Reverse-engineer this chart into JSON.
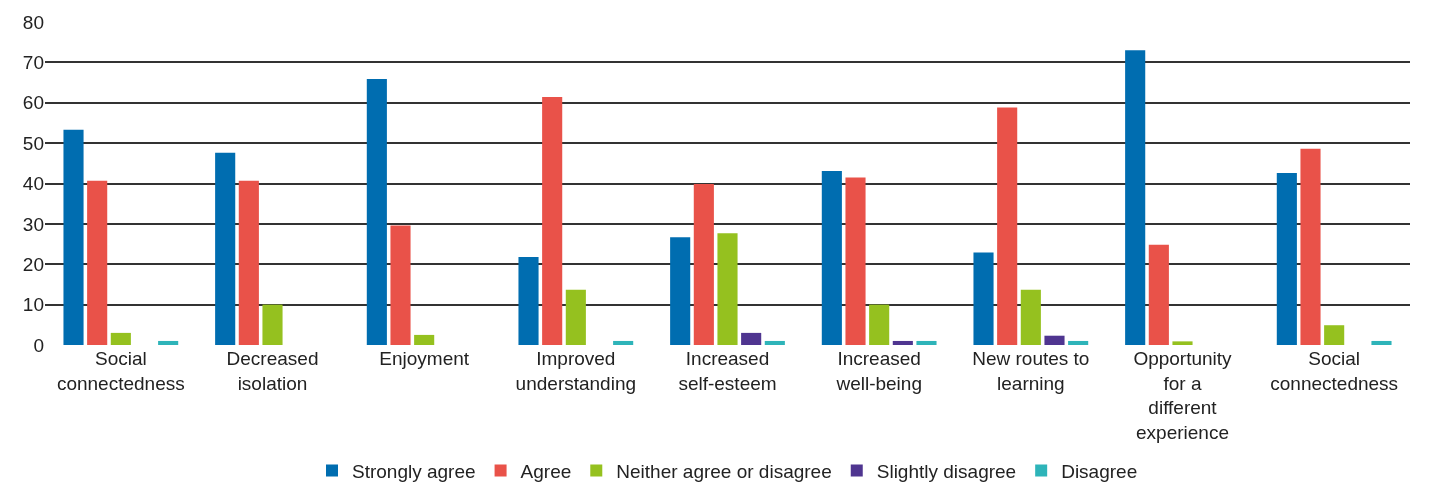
{
  "chart_data": {
    "type": "bar",
    "categories": [
      "Social connectedness",
      "Decreased isolation",
      "Enjoyment",
      "Improved understanding",
      "Increased self-esteem",
      "Increased well-being",
      "New routes to learning",
      "Opportunity for a different experience",
      "Social connectedness"
    ],
    "series": [
      {
        "name": "Strongly agree",
        "color": "#006db0",
        "values": [
          53.3,
          47.6,
          65.9,
          21.8,
          26.7,
          43.1,
          22.9,
          73.0,
          42.6
        ]
      },
      {
        "name": "Agree",
        "color": "#e95249",
        "values": [
          40.7,
          40.7,
          29.6,
          61.4,
          39.9,
          41.5,
          58.8,
          24.8,
          48.6
        ]
      },
      {
        "name": "Neither agree or disagree",
        "color": "#95c11f",
        "values": [
          3.0,
          10.0,
          2.5,
          13.7,
          27.7,
          10.0,
          13.7,
          0.9,
          4.9
        ]
      },
      {
        "name": "Slightly disagree",
        "color": "#4f3590",
        "values": [
          null,
          null,
          null,
          null,
          3.0,
          1.0,
          2.3,
          null,
          null
        ]
      },
      {
        "name": "Disagree",
        "color": "#2eb4b9",
        "values": [
          1.0,
          null,
          null,
          1.0,
          1.0,
          1.0,
          1.0,
          null,
          1.0
        ]
      }
    ],
    "ylim": [
      0,
      80
    ],
    "yticks": [
      0,
      10,
      20,
      30,
      40,
      50,
      60,
      70,
      80
    ],
    "grid": "y",
    "legend": "bottom"
  }
}
